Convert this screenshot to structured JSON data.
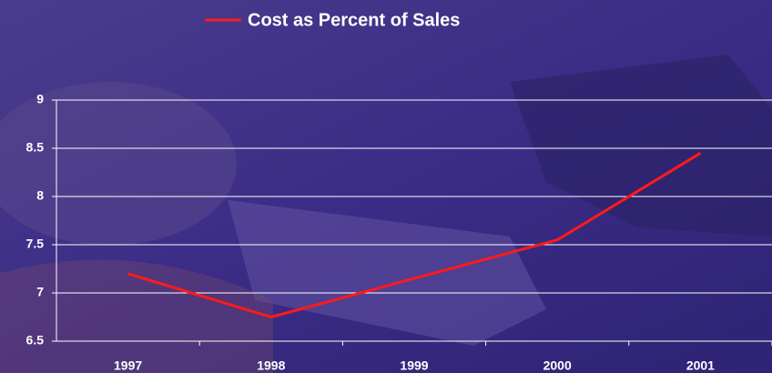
{
  "chart_data": {
    "type": "line",
    "categories": [
      "1997",
      "1998",
      "1999",
      "2000",
      "2001"
    ],
    "series": [
      {
        "name": "Cost as Percent of Sales",
        "color": "#ff1a1a",
        "values": [
          7.2,
          6.75,
          7.15,
          7.55,
          8.45
        ]
      }
    ],
    "ylim": [
      6.5,
      9
    ],
    "yticks": [
      6.5,
      7,
      7.5,
      8,
      8.5,
      9
    ],
    "grid": true,
    "legend": "top"
  }
}
